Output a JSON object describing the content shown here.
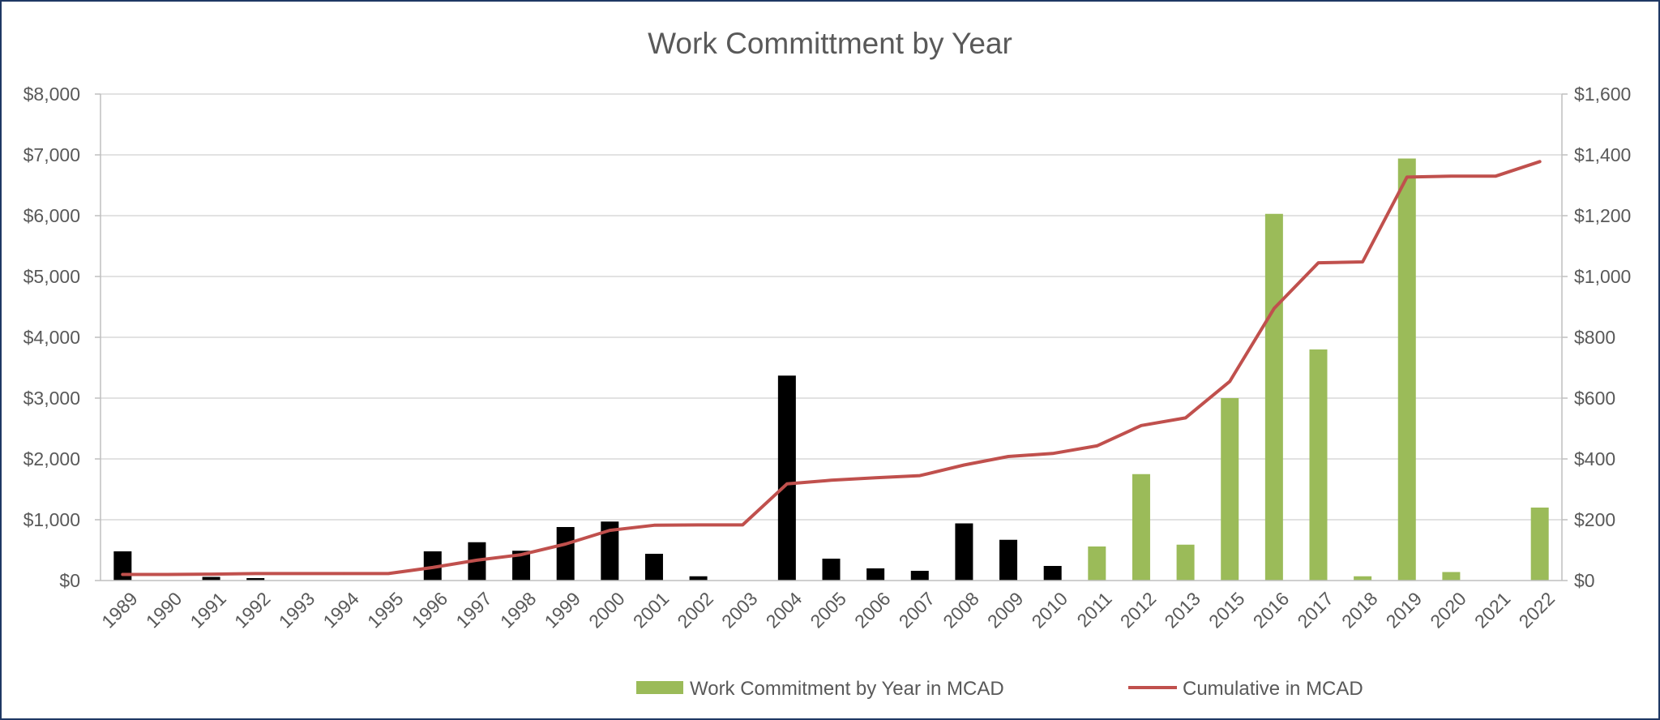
{
  "chart_data": {
    "type": "bar",
    "title": "Work Committment by Year",
    "categories": [
      "1989",
      "1990",
      "1991",
      "1992",
      "1993",
      "1994",
      "1995",
      "1996",
      "1997",
      "1998",
      "1999",
      "2000",
      "2001",
      "2002",
      "2003",
      "2004",
      "2005",
      "2006",
      "2007",
      "2008",
      "2009",
      "2010",
      "2011",
      "2012",
      "2013",
      "2015",
      "2016",
      "2017",
      "2018",
      "2019",
      "2020",
      "2021",
      "2022"
    ],
    "series": [
      {
        "name": "Work Commitment by Year in MCAD",
        "kind": "bar",
        "axis": "left",
        "color": "#9bbb59",
        "highlight_from": "2011",
        "earlier_color": "#000000",
        "values": [
          480,
          0,
          60,
          40,
          0,
          0,
          0,
          480,
          630,
          490,
          880,
          970,
          440,
          70,
          0,
          3370,
          360,
          200,
          160,
          940,
          670,
          240,
          560,
          1750,
          590,
          3000,
          6030,
          3800,
          70,
          6940,
          140,
          0,
          1200
        ]
      },
      {
        "name": "Cumulative in MCAD",
        "kind": "line",
        "axis": "right",
        "color": "#c0504d",
        "values": [
          20,
          20,
          21,
          23,
          23,
          23,
          23,
          43,
          67,
          85,
          120,
          165,
          182,
          183,
          183,
          318,
          330,
          338,
          345,
          380,
          408,
          418,
          443,
          510,
          535,
          655,
          895,
          1045,
          1048,
          1327,
          1330,
          1330,
          1378
        ]
      }
    ],
    "y_left": {
      "range": [
        0,
        8000
      ],
      "ticks": [
        "$0",
        "$1,000",
        "$2,000",
        "$3,000",
        "$4,000",
        "$5,000",
        "$6,000",
        "$7,000",
        "$8,000"
      ]
    },
    "y_right": {
      "range": [
        0,
        1600
      ],
      "ticks": [
        "$0",
        "$200",
        "$400",
        "$600",
        "$800",
        "$1,000",
        "$1,200",
        "$1,400",
        "$1,600"
      ]
    },
    "xlabel": "",
    "ylabel": "",
    "grid": true,
    "legend": "bottom"
  }
}
